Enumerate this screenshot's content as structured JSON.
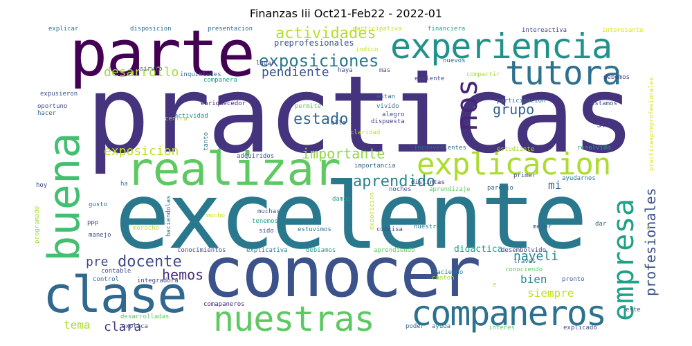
{
  "chart_data": {
    "type": "wordcloud",
    "title": "Finanzas Iii Oct21-Feb22 - 2022-01",
    "words": [
      {
        "text": "practicas",
        "color": "#46337e"
      },
      {
        "text": "excelente",
        "color": "#2a788e"
      },
      {
        "text": "conocer",
        "color": "#3b528b"
      },
      {
        "text": "parte",
        "color": "#440154"
      },
      {
        "text": "realizar",
        "color": "#5ec962"
      },
      {
        "text": "clase",
        "color": "#31688e"
      },
      {
        "text": "buena",
        "color": "#43bf71"
      },
      {
        "text": "experiencia",
        "color": "#21918c"
      },
      {
        "text": "tutora",
        "color": "#2c728e"
      },
      {
        "text": "nuestras",
        "color": "#5ec962"
      },
      {
        "text": "companeros",
        "color": "#2c728e"
      },
      {
        "text": "explicacion",
        "color": "#addc30"
      },
      {
        "text": "empresa",
        "color": "#1fa088"
      },
      {
        "text": "nos",
        "color": "#482475"
      },
      {
        "text": "exposiciones",
        "color": "#2a788e"
      },
      {
        "text": "actividades",
        "color": "#b5de2b"
      },
      {
        "text": "profesionales",
        "color": "#3b528b"
      },
      {
        "text": "aprendido",
        "color": "#26828e"
      },
      {
        "text": "docente",
        "color": "#3e4989"
      },
      {
        "text": "estado",
        "color": "#31688e"
      },
      {
        "text": "importante",
        "color": "#90d743"
      },
      {
        "text": "exposicion",
        "color": "#bddf26"
      },
      {
        "text": "hemos",
        "color": "#472d7b"
      },
      {
        "text": "grupo",
        "color": "#32648e"
      },
      {
        "text": "pendiente",
        "color": "#3b528b"
      },
      {
        "text": "desarrollo",
        "color": "#a5db36"
      },
      {
        "text": "nayeli",
        "color": "#26828e"
      },
      {
        "text": "clara",
        "color": "#443a83"
      },
      {
        "text": "tema",
        "color": "#addc30"
      },
      {
        "text": "bien",
        "color": "#25858e"
      },
      {
        "text": "siempre",
        "color": "#c2df23"
      },
      {
        "text": "pre",
        "color": "#3e4a89"
      },
      {
        "text": "mi",
        "color": "#31688e"
      },
      {
        "text": "didactica",
        "color": "#1fa188"
      },
      {
        "text": "preprofesionales",
        "color": "#3b528b"
      },
      {
        "text": "sri",
        "color": "#424086"
      },
      {
        "text": "practicaspreprofesionales",
        "color": "#d8e219"
      },
      {
        "text": "explicar",
        "color": "#2a768e"
      },
      {
        "text": "disposicion",
        "color": "#2d718e"
      },
      {
        "text": "presentacion",
        "color": "#2e6f8e"
      },
      {
        "text": "participativa",
        "color": "#c8e020"
      },
      {
        "text": "financiera",
        "color": "#1fa287"
      },
      {
        "text": "intereactiva",
        "color": "#3e4a89"
      },
      {
        "text": "interesante",
        "color": "#dde318"
      },
      {
        "text": "sirvio",
        "color": "#3b528b"
      },
      {
        "text": "lugar",
        "color": "#3e4989"
      },
      {
        "text": "indico",
        "color": "#c0df25"
      },
      {
        "text": "nuevos",
        "color": "#31688e"
      },
      {
        "text": "debemos",
        "color": "#433e85"
      },
      {
        "text": "inquietudes",
        "color": "#2d708e"
      },
      {
        "text": "haya",
        "color": "#3f4788"
      },
      {
        "text": "mas",
        "color": "#3b528b"
      },
      {
        "text": "exelente",
        "color": "#3e4989"
      },
      {
        "text": "compartir",
        "color": "#a8db34"
      },
      {
        "text": "companera",
        "color": "#1f9a8a"
      },
      {
        "text": "expusieron",
        "color": "#3b528b"
      },
      {
        "text": "estan",
        "color": "#31688e"
      },
      {
        "text": "participacion",
        "color": "#2a788e"
      },
      {
        "text": "enriquecedor",
        "color": "#482475"
      },
      {
        "text": "oportuno",
        "color": "#3e4989"
      },
      {
        "text": "permite",
        "color": "#5ec962"
      },
      {
        "text": "vivido",
        "color": "#2c728e"
      },
      {
        "text": "estamos",
        "color": "#3b528b"
      },
      {
        "text": "hacer",
        "color": "#31688e"
      },
      {
        "text": "alegro",
        "color": "#3e4989"
      },
      {
        "text": "actividad",
        "color": "#23898e"
      },
      {
        "text": "dispuesta",
        "color": "#433e85"
      },
      {
        "text": "tanto",
        "color": "#2a788e"
      },
      {
        "text": "centra",
        "color": "#a5db36"
      },
      {
        "text": "ella",
        "color": "#3b528b"
      },
      {
        "text": "claridad",
        "color": "#c2df23"
      },
      {
        "text": "informes",
        "color": "#424086"
      },
      {
        "text": "inconvenientes",
        "color": "#2d708e"
      },
      {
        "text": "estudiante",
        "color": "#a8db34"
      },
      {
        "text": "resolvido",
        "color": "#1fa188"
      },
      {
        "text": "adquiridos",
        "color": "#3b528b"
      },
      {
        "text": "importancia",
        "color": "#31688e"
      },
      {
        "text": "hoy",
        "color": "#3e4989"
      },
      {
        "text": "ha",
        "color": "#2a788e"
      },
      {
        "text": "distintas",
        "color": "#482475"
      },
      {
        "text": "primer",
        "color": "#3e4989"
      },
      {
        "text": "ayudarnos",
        "color": "#2c728e"
      },
      {
        "text": "noches",
        "color": "#3b528b"
      },
      {
        "text": "aprendizaje",
        "color": "#5ec962"
      },
      {
        "text": "parecio",
        "color": "#31688e"
      },
      {
        "text": "programado",
        "color": "#a5db36"
      },
      {
        "text": "haciendolas",
        "color": "#2a788e"
      },
      {
        "text": "gusto",
        "color": "#2d708e"
      },
      {
        "text": "damos",
        "color": "#1fa188"
      },
      {
        "text": "exposicion",
        "color": "#c2df23"
      },
      {
        "text": "mucho",
        "color": "#c8e020"
      },
      {
        "text": "muchas",
        "color": "#3b528b"
      },
      {
        "text": "ppp",
        "color": "#433e85"
      },
      {
        "text": "tenemos",
        "color": "#1fa188"
      },
      {
        "text": "concisa",
        "color": "#3e4989"
      },
      {
        "text": "nuestros",
        "color": "#2a788e"
      },
      {
        "text": "mejor",
        "color": "#3b528b"
      },
      {
        "text": "dar",
        "color": "#31688e"
      },
      {
        "text": "morocho",
        "color": "#bddf26"
      },
      {
        "text": "sido",
        "color": "#3e4989"
      },
      {
        "text": "estuvimos",
        "color": "#2c728e"
      },
      {
        "text": "manejo",
        "color": "#3b528b"
      },
      {
        "text": "conocimientos",
        "color": "#3e4989"
      },
      {
        "text": "explicativa",
        "color": "#2a788e"
      },
      {
        "text": "debiamos",
        "color": "#1fa188"
      },
      {
        "text": "aprendiendo",
        "color": "#5ec962"
      },
      {
        "text": "desembolvido",
        "color": "#433e85"
      },
      {
        "text": "contable",
        "color": "#3b528b"
      },
      {
        "text": "haciendo",
        "color": "#2a788e"
      },
      {
        "text": "conociendo",
        "color": "#5ec962"
      },
      {
        "text": "control",
        "color": "#31688e"
      },
      {
        "text": "integradora",
        "color": "#3e4989"
      },
      {
        "text": "canton",
        "color": "#a5db36"
      },
      {
        "text": "traves",
        "color": "#2c728e"
      },
      {
        "text": "pronto",
        "color": "#3b528b"
      },
      {
        "text": "comapaneros",
        "color": "#482475"
      },
      {
        "text": "este",
        "color": "#3e4989"
      },
      {
        "text": "desarrolladas",
        "color": "#5ec962"
      },
      {
        "text": "explica",
        "color": "#3b528b"
      },
      {
        "text": "poder",
        "color": "#31688e"
      },
      {
        "text": "ayuda",
        "color": "#2a788e"
      },
      {
        "text": "interes",
        "color": "#5ec962"
      },
      {
        "text": "explicado",
        "color": "#3e4989"
      },
      {
        "text": "e",
        "color": "#bddf26"
      },
      {
        "text": "q",
        "color": "#c2df23"
      }
    ]
  }
}
